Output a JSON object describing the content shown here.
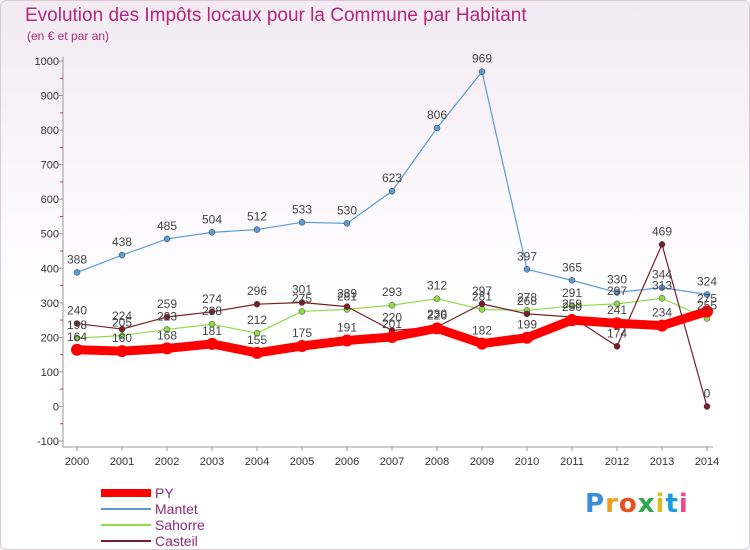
{
  "header": {
    "title": "Evolution des Impôts locaux pour la Commune par Habitant",
    "subtitle": "(en € et par an)"
  },
  "brand": {
    "letters": [
      "P",
      "r",
      "o",
      "x",
      "i",
      "t",
      "i"
    ],
    "colors": [
      "#3a8fd8",
      "#f0a020",
      "#e8501e",
      "#2ea84a",
      "#d8c020",
      "#1e9ad8",
      "#e84a8a"
    ]
  },
  "chart_data": {
    "type": "line",
    "x": [
      "2000",
      "2001",
      "2002",
      "2003",
      "2004",
      "2005",
      "2006",
      "2007",
      "2008",
      "2009",
      "2010",
      "2011",
      "2012",
      "2013",
      "2014"
    ],
    "ylim": [
      -100,
      1000
    ],
    "yticks": [
      "-100",
      "0",
      "100",
      "200",
      "300",
      "400",
      "500",
      "600",
      "700",
      "800",
      "900",
      "1000"
    ],
    "grid": false,
    "legend_position": "bottom-left",
    "series": [
      {
        "name": "PY",
        "color": "#ff0000",
        "width": 9,
        "marker": 6,
        "values": [
          164,
          160,
          168,
          181,
          155,
          175,
          191,
          201,
          226,
          182,
          199,
          250,
          241,
          234,
          275
        ],
        "labels": [
          "164",
          "160",
          "168",
          "181",
          "155",
          "175",
          "191",
          "201",
          "226",
          "182",
          "199",
          "250",
          "241",
          "234",
          "275"
        ]
      },
      {
        "name": "Mantet",
        "color": "#5b9bd5",
        "width": 1.2,
        "marker": 3,
        "values": [
          388,
          438,
          485,
          504,
          512,
          533,
          530,
          623,
          806,
          969,
          397,
          365,
          330,
          344,
          324
        ],
        "labels": [
          "388",
          "438",
          "485",
          "504",
          "512",
          "533",
          "530",
          "623",
          "806",
          "969",
          "397",
          "365",
          "330",
          "344",
          "324"
        ]
      },
      {
        "name": "Sahorre",
        "color": "#8fdc4a",
        "width": 1.2,
        "marker": 3,
        "values": [
          198,
          205,
          223,
          238,
          212,
          275,
          281,
          293,
          312,
          281,
          278,
          291,
          297,
          313,
          255
        ],
        "labels": [
          "198",
          "205",
          "223",
          "238",
          "212",
          "275",
          "281",
          "293",
          "312",
          "281",
          "278",
          "291",
          "297",
          "313",
          "255"
        ]
      },
      {
        "name": "Casteil",
        "color": "#7a1e2c",
        "width": 1.2,
        "marker": 3,
        "values": [
          240,
          224,
          259,
          274,
          296,
          301,
          289,
          220,
          230,
          297,
          268,
          259,
          174,
          469,
          0
        ],
        "labels": [
          "240",
          "224",
          "259",
          "274",
          "296",
          "301",
          "289",
          "220",
          "230",
          "297",
          "268",
          "259",
          "174",
          "469",
          "0"
        ]
      }
    ]
  }
}
